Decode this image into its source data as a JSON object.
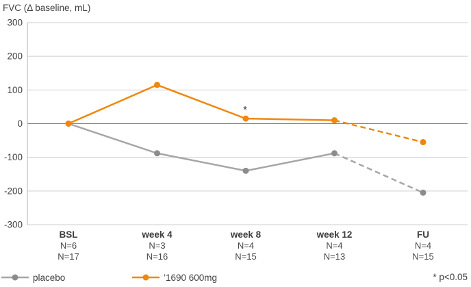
{
  "chart": {
    "title": "FVC (Δ baseline, mL)"
  },
  "chart_data": {
    "type": "line",
    "title": "FVC (Δ baseline, mL)",
    "categories": [
      "BSL",
      "week 4",
      "week 8",
      "week 12",
      "FU"
    ],
    "x_sublabels": [
      [
        "N=6",
        "N=17"
      ],
      [
        "N=3",
        "N=16"
      ],
      [
        "N=4",
        "N=15"
      ],
      [
        "N=4",
        "N=13"
      ],
      [
        "N=4",
        "N=15"
      ]
    ],
    "series": [
      {
        "name": "placebo",
        "name_slug": "placebo",
        "color": "#A6A6A6",
        "marker_color": "#8C8C8C",
        "values": [
          0,
          -88,
          -140,
          -88,
          -205
        ],
        "dashed_from_index": 3
      },
      {
        "name": "’1690 600mg",
        "name_slug": "drug-1690-600mg",
        "color": "#F0870F",
        "marker_color": "#F0870F",
        "values": [
          0,
          115,
          15,
          10,
          -55
        ],
        "dashed_from_index": 3
      }
    ],
    "annotations": [
      {
        "text": "*",
        "series": 1,
        "index": 2
      }
    ],
    "ylim": [
      -300,
      300
    ],
    "yticks": [
      300,
      200,
      100,
      0,
      -100,
      -200,
      -300
    ],
    "grid": true,
    "legend_position": "bottom",
    "colors": {
      "grid": "#CDCDCD",
      "zero_line": "#808080",
      "axis": "#B3B3B3",
      "text": "#404040"
    }
  },
  "legend": {
    "items": [
      {
        "label": "placebo"
      },
      {
        "label": "’1690 600mg"
      }
    ],
    "note": "* p<0.05"
  }
}
